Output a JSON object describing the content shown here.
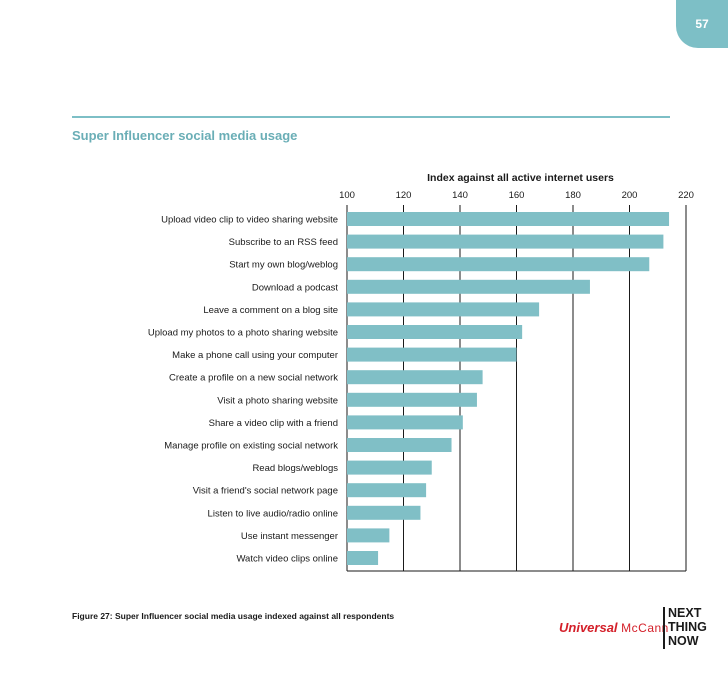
{
  "page_number": "57",
  "section_title": "Super Influencer social media usage",
  "figure_caption": "Figure 27: Super Influencer social media usage indexed against all respondents",
  "brand": {
    "universal": "Universal",
    "mccann": "McCann",
    "ntn": [
      "NEXT",
      "THING",
      "NOW"
    ]
  },
  "colors": {
    "accent": "#7dbfc6",
    "bar": "#80bfc6",
    "brand_red": "#d4202a"
  },
  "chart_data": {
    "type": "bar",
    "orientation": "horizontal",
    "title": "",
    "xlabel": "Index against all active internet users",
    "ylabel": "",
    "xlim": [
      100,
      220
    ],
    "xticks": [
      100,
      120,
      140,
      160,
      180,
      200,
      220
    ],
    "grid": true,
    "categories": [
      "Upload video clip to video sharing website",
      "Subscribe to an RSS feed",
      "Start my own blog/weblog",
      "Download a podcast",
      "Leave a comment on a blog site",
      "Upload my photos to a photo sharing website",
      "Make a phone call using your computer",
      "Create a profile on a new social network",
      "Visit a photo sharing website",
      "Share a video clip with a friend",
      "Manage profile on existing social network",
      "Read blogs/weblogs",
      "Visit a friend's social network page",
      "Listen to live audio/radio online",
      "Use instant messenger",
      "Watch video clips online"
    ],
    "values": [
      214,
      212,
      207,
      186,
      168,
      162,
      160,
      148,
      146,
      141,
      137,
      130,
      128,
      126,
      115,
      111
    ]
  }
}
